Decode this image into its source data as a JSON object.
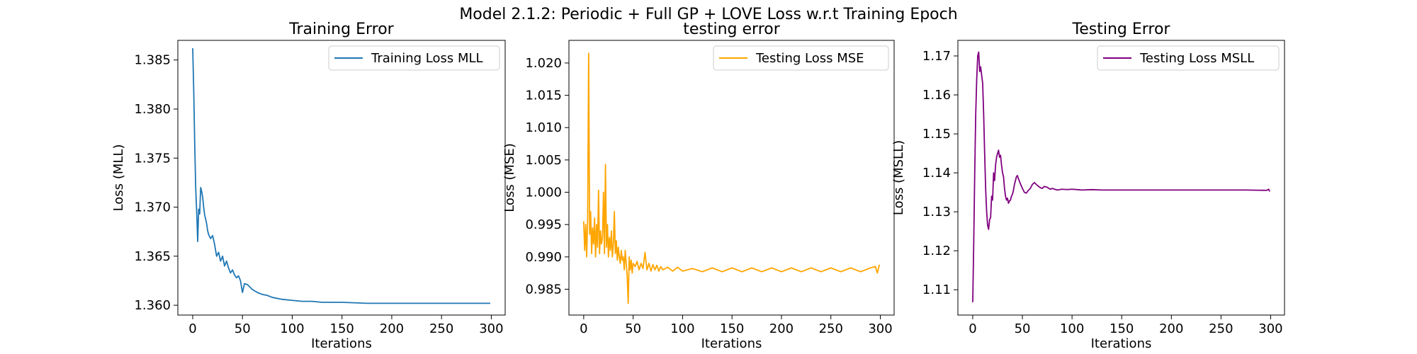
{
  "figure": {
    "suptitle": "Model 2.1.2: Periodic + Full GP + LOVE Loss w.r.t Training Epoch"
  },
  "chart_data": [
    {
      "type": "line",
      "title": "Training Error",
      "xlabel": "Iterations",
      "ylabel": "Loss (MLL)",
      "xlim": [
        -14.95,
        313.95
      ],
      "ylim": [
        1.359,
        1.387
      ],
      "xticks": [
        0,
        50,
        100,
        150,
        200,
        250,
        300
      ],
      "yticks": [
        1.36,
        1.365,
        1.37,
        1.375,
        1.38,
        1.385
      ],
      "ytick_format": 3,
      "grid": false,
      "legend_position": "top-right",
      "color": "#1f77b4",
      "series": [
        {
          "name": "Training Loss MLL",
          "x": [
            0,
            1,
            2,
            3,
            4,
            5,
            6,
            7,
            8,
            9,
            10,
            11,
            12,
            13,
            14,
            15,
            16,
            18,
            20,
            22,
            24,
            26,
            28,
            30,
            32,
            34,
            36,
            38,
            40,
            42,
            44,
            46,
            48,
            50,
            52,
            55,
            60,
            65,
            70,
            75,
            80,
            90,
            100,
            110,
            120,
            130,
            140,
            150,
            175,
            200,
            225,
            250,
            275,
            299
          ],
          "y": [
            1.3862,
            1.382,
            1.3765,
            1.372,
            1.3695,
            1.3665,
            1.3698,
            1.3693,
            1.372,
            1.3716,
            1.371,
            1.37,
            1.3692,
            1.3688,
            1.3683,
            1.3676,
            1.3672,
            1.3668,
            1.3671,
            1.3662,
            1.365,
            1.3654,
            1.3645,
            1.365,
            1.364,
            1.3645,
            1.3638,
            1.3633,
            1.3636,
            1.3631,
            1.3628,
            1.363,
            1.3625,
            1.3613,
            1.3622,
            1.3621,
            1.3616,
            1.3613,
            1.3611,
            1.361,
            1.3608,
            1.3606,
            1.3605,
            1.3604,
            1.3604,
            1.3603,
            1.3603,
            1.3603,
            1.3602,
            1.3602,
            1.3602,
            1.3602,
            1.3602,
            1.3602
          ]
        }
      ]
    },
    {
      "type": "line",
      "title": "testing error",
      "xlabel": "Iterations",
      "ylabel": "Loss (MSE)",
      "xlim": [
        -14.95,
        313.95
      ],
      "ylim": [
        0.981,
        1.0235
      ],
      "xticks": [
        0,
        50,
        100,
        150,
        200,
        250,
        300
      ],
      "yticks": [
        0.985,
        0.99,
        0.995,
        1.0,
        1.005,
        1.01,
        1.015,
        1.02
      ],
      "ytick_format": 3,
      "grid": false,
      "legend_position": "top-right",
      "color": "#ffa500",
      "series": [
        {
          "name": "Testing Loss MSE",
          "x": [
            0,
            1,
            2,
            3,
            4,
            5,
            6,
            7,
            8,
            9,
            10,
            11,
            12,
            13,
            14,
            15,
            16,
            17,
            18,
            19,
            20,
            21,
            22,
            23,
            24,
            25,
            26,
            27,
            28,
            29,
            30,
            31,
            32,
            33,
            34,
            35,
            36,
            37,
            38,
            39,
            40,
            41,
            42,
            43,
            44,
            45,
            46,
            47,
            48,
            49,
            50,
            52,
            54,
            56,
            58,
            60,
            62,
            64,
            66,
            68,
            70,
            72,
            74,
            76,
            78,
            80,
            85,
            90,
            95,
            100,
            110,
            120,
            130,
            140,
            150,
            160,
            170,
            180,
            190,
            200,
            210,
            220,
            230,
            240,
            250,
            260,
            270,
            280,
            290,
            295,
            297,
            299
          ],
          "y": [
            0.9955,
            0.991,
            0.995,
            0.99,
            0.996,
            1.0215,
            0.9935,
            0.997,
            0.9905,
            0.9945,
            0.992,
            0.996,
            0.99,
            0.995,
            0.9915,
            1.0003,
            0.9905,
            0.994,
            0.992,
            0.993,
            1.0,
            0.9905,
            1.0043,
            0.9915,
            0.995,
            0.99,
            0.993,
            0.991,
            0.994,
            0.99,
            0.992,
            0.997,
            0.9905,
            0.9925,
            0.9895,
            0.9915,
            0.99,
            0.989,
            0.991,
            0.9895,
            0.99,
            0.988,
            0.991,
            0.989,
            0.987,
            0.9828,
            0.99,
            0.988,
            0.9895,
            0.9875,
            0.989,
            0.9885,
            0.9893,
            0.988,
            0.989,
            0.9882,
            0.9907,
            0.988,
            0.989,
            0.9878,
            0.9888,
            0.988,
            0.9887,
            0.9878,
            0.9885,
            0.988,
            0.9884,
            0.9878,
            0.9884,
            0.9878,
            0.9882,
            0.9877,
            0.9883,
            0.9877,
            0.9883,
            0.9877,
            0.9883,
            0.9877,
            0.9883,
            0.9877,
            0.9883,
            0.9877,
            0.9883,
            0.9877,
            0.9883,
            0.9877,
            0.9883,
            0.9877,
            0.9883,
            0.9885,
            0.9875,
            0.9888
          ]
        }
      ]
    },
    {
      "type": "line",
      "title": "Testing Error",
      "xlabel": "Iterations",
      "ylabel": "Loss (MSLL)",
      "xlim": [
        -14.95,
        313.95
      ],
      "ylim": [
        1.1035,
        1.174
      ],
      "xticks": [
        0,
        50,
        100,
        150,
        200,
        250,
        300
      ],
      "yticks": [
        1.11,
        1.12,
        1.13,
        1.14,
        1.15,
        1.16,
        1.17
      ],
      "ytick_format": 2,
      "grid": false,
      "legend_position": "top-right",
      "color": "#800080",
      "series": [
        {
          "name": "Testing Loss MSLL",
          "x": [
            0,
            1,
            2,
            3,
            4,
            5,
            6,
            7,
            8,
            9,
            10,
            11,
            12,
            13,
            14,
            15,
            16,
            17,
            18,
            19,
            20,
            21,
            22,
            23,
            24,
            25,
            26,
            27,
            28,
            29,
            30,
            31,
            32,
            33,
            34,
            35,
            36,
            37,
            38,
            39,
            40,
            41,
            42,
            43,
            44,
            45,
            46,
            48,
            50,
            52,
            54,
            56,
            58,
            60,
            62,
            65,
            68,
            70,
            72,
            75,
            78,
            80,
            85,
            90,
            95,
            100,
            110,
            120,
            130,
            150,
            175,
            200,
            225,
            250,
            275,
            296,
            298,
            299
          ],
          "y": [
            1.1068,
            1.122,
            1.14,
            1.155,
            1.164,
            1.17,
            1.171,
            1.166,
            1.1672,
            1.165,
            1.163,
            1.155,
            1.145,
            1.136,
            1.13,
            1.1265,
            1.1255,
            1.128,
            1.1285,
            1.134,
            1.133,
            1.14,
            1.138,
            1.142,
            1.144,
            1.145,
            1.1458,
            1.144,
            1.1445,
            1.142,
            1.14,
            1.139,
            1.136,
            1.134,
            1.133,
            1.1335,
            1.1322,
            1.1328,
            1.133,
            1.134,
            1.1345,
            1.1355,
            1.137,
            1.138,
            1.139,
            1.1393,
            1.1385,
            1.1372,
            1.136,
            1.135,
            1.1348,
            1.1355,
            1.136,
            1.137,
            1.1375,
            1.1368,
            1.1362,
            1.136,
            1.1365,
            1.1363,
            1.1358,
            1.136,
            1.1356,
            1.1358,
            1.1357,
            1.1358,
            1.1356,
            1.1357,
            1.1356,
            1.1356,
            1.1356,
            1.1356,
            1.1356,
            1.1356,
            1.1356,
            1.1355,
            1.1358,
            1.1352
          ]
        }
      ]
    }
  ]
}
